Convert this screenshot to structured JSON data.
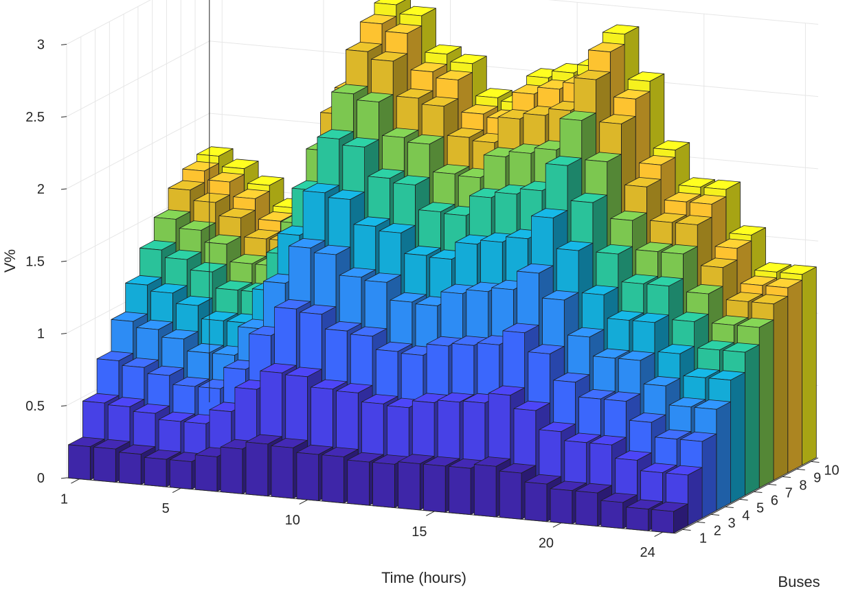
{
  "chart_data": {
    "type": "bar3d",
    "title": "",
    "xlabel": "Time (hours)",
    "ylabel": "Buses",
    "zlabel": "V%",
    "zlim": [
      0,
      3
    ],
    "x_tick_labels": [
      "1",
      "5",
      "10",
      "15",
      "20",
      "24"
    ],
    "y_tick_labels": [
      "1",
      "2",
      "3",
      "4",
      "5",
      "6",
      "7",
      "8",
      "9",
      "10"
    ],
    "z_tick_labels": [
      "0",
      "0.5",
      "1",
      "1.5",
      "2",
      "2.5",
      "3"
    ],
    "hours": [
      1,
      2,
      3,
      4,
      5,
      6,
      7,
      8,
      9,
      10,
      11,
      12,
      13,
      14,
      15,
      16,
      17,
      18,
      19,
      20,
      21,
      22,
      23,
      24
    ],
    "buses": [
      1,
      2,
      3,
      4,
      5,
      6,
      7,
      8,
      9,
      10
    ],
    "series": [
      {
        "name": "Bus 1",
        "color": "#3e26a8",
        "values": [
          0.23,
          0.23,
          0.21,
          0.19,
          0.19,
          0.24,
          0.31,
          0.36,
          0.35,
          0.32,
          0.32,
          0.3,
          0.3,
          0.32,
          0.32,
          0.32,
          0.35,
          0.32,
          0.26,
          0.23,
          0.23,
          0.18,
          0.15,
          0.15
        ]
      },
      {
        "name": "Bus 2",
        "color": "#4741e6",
        "values": [
          0.48,
          0.47,
          0.44,
          0.4,
          0.4,
          0.5,
          0.67,
          0.8,
          0.79,
          0.72,
          0.71,
          0.65,
          0.64,
          0.69,
          0.71,
          0.72,
          0.79,
          0.7,
          0.57,
          0.51,
          0.51,
          0.42,
          0.35,
          0.35
        ]
      },
      {
        "name": "Bus 3",
        "color": "#3b67fc",
        "values": [
          0.72,
          0.69,
          0.65,
          0.59,
          0.59,
          0.74,
          0.99,
          1.19,
          1.17,
          1.07,
          1.05,
          0.96,
          0.95,
          1.03,
          1.05,
          1.07,
          1.17,
          1.04,
          0.86,
          0.76,
          0.76,
          0.63,
          0.53,
          0.53
        ]
      },
      {
        "name": "Bus 4",
        "color": "#2d8cf4",
        "values": [
          0.94,
          0.9,
          0.85,
          0.77,
          0.77,
          0.97,
          1.3,
          1.56,
          1.53,
          1.39,
          1.37,
          1.25,
          1.24,
          1.34,
          1.37,
          1.4,
          1.53,
          1.36,
          1.12,
          0.99,
          0.99,
          0.83,
          0.7,
          0.7
        ]
      },
      {
        "name": "Bus 5",
        "color": "#14abd7",
        "values": [
          1.14,
          1.1,
          1.03,
          0.94,
          0.94,
          1.18,
          1.58,
          1.89,
          1.86,
          1.69,
          1.66,
          1.52,
          1.51,
          1.63,
          1.66,
          1.7,
          1.86,
          1.65,
          1.36,
          1.2,
          1.2,
          1.0,
          0.85,
          0.85
        ]
      },
      {
        "name": "Bus 6",
        "color": "#2ac29a",
        "values": [
          1.33,
          1.28,
          1.21,
          1.1,
          1.1,
          1.38,
          1.84,
          2.21,
          2.17,
          1.97,
          1.94,
          1.77,
          1.76,
          1.9,
          1.94,
          1.98,
          2.17,
          1.93,
          1.59,
          1.4,
          1.4,
          1.17,
          0.99,
          0.99
        ]
      },
      {
        "name": "Bus 7",
        "color": "#7cc750",
        "values": [
          1.49,
          1.43,
          1.35,
          1.23,
          1.23,
          1.54,
          2.06,
          2.47,
          2.43,
          2.2,
          2.17,
          1.98,
          1.97,
          2.13,
          2.17,
          2.21,
          2.43,
          2.16,
          1.77,
          1.57,
          1.57,
          1.31,
          1.11,
          1.11
        ]
      },
      {
        "name": "Bus 8",
        "color": "#dcb729",
        "values": [
          1.64,
          1.57,
          1.48,
          1.35,
          1.35,
          1.69,
          2.26,
          2.71,
          2.66,
          2.42,
          2.38,
          2.18,
          2.16,
          2.34,
          2.38,
          2.43,
          2.66,
          2.37,
          1.95,
          1.72,
          1.72,
          1.44,
          1.22,
          1.22
        ]
      },
      {
        "name": "Bus 9",
        "color": "#fdc330",
        "values": [
          1.72,
          1.66,
          1.56,
          1.42,
          1.42,
          1.78,
          2.38,
          2.85,
          2.8,
          2.55,
          2.51,
          2.29,
          2.27,
          2.46,
          2.51,
          2.56,
          2.8,
          2.49,
          2.05,
          1.81,
          1.81,
          1.52,
          1.28,
          1.28
        ]
      },
      {
        "name": "Bus 10",
        "color": "#f5f11e",
        "values": [
          1.77,
          1.7,
          1.6,
          1.46,
          1.46,
          1.83,
          2.44,
          2.93,
          2.87,
          2.62,
          2.57,
          2.35,
          2.33,
          2.52,
          2.57,
          2.63,
          2.87,
          2.56,
          2.1,
          1.86,
          1.86,
          1.56,
          1.32,
          1.32
        ]
      }
    ]
  }
}
